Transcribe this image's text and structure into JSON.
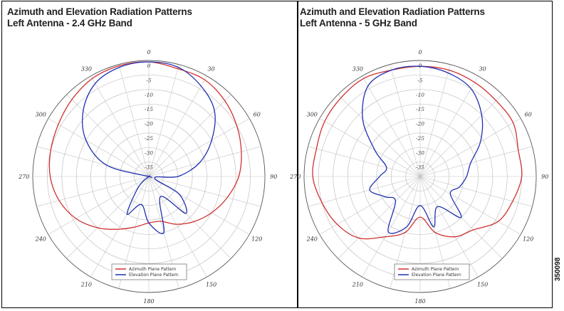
{
  "chart_data": [
    {
      "type": "polar",
      "title": "Azimuth and Elevation Radiation Patterns",
      "subtitle": "Left Antenna - 2.4 GHz Band",
      "angle_ticks": [
        "0",
        "30",
        "60",
        "90",
        "120",
        "150",
        "180",
        "210",
        "240",
        "270",
        "300",
        "330"
      ],
      "ring_ticks": [
        "0",
        "-5",
        "-10",
        "-15",
        "-20",
        "-25",
        "-30",
        "-35"
      ],
      "r_range_db": [
        -40,
        0
      ],
      "legend": [
        "Azimuth Plane Pattern",
        "Elevation Plane Pattern"
      ],
      "legend_position": "bottom-center",
      "series": [
        {
          "name": "Azimuth Plane Pattern",
          "color": "#d03030",
          "theta_deg": [
            0,
            15,
            30,
            45,
            60,
            75,
            90,
            105,
            120,
            135,
            150,
            165,
            180,
            195,
            210,
            225,
            240,
            255,
            270,
            285,
            300,
            315,
            330,
            345,
            360
          ],
          "r_db": [
            -0.5,
            -1.5,
            -1.5,
            -3,
            -5,
            -7,
            -9,
            -12,
            -15,
            -18,
            -21,
            -24,
            -24,
            -22,
            -19,
            -15,
            -11,
            -8,
            -6,
            -5,
            -4,
            -2.5,
            -1,
            -0.5,
            -0.5
          ]
        },
        {
          "name": "Elevation Plane Pattern",
          "color": "#2030b0",
          "theta_deg": [
            0,
            15,
            30,
            45,
            60,
            75,
            90,
            105,
            120,
            135,
            150,
            165,
            180,
            195,
            210,
            225,
            240,
            255,
            270,
            285,
            300,
            315,
            330,
            345,
            360
          ],
          "r_db": [
            -0.5,
            -1,
            -4,
            -8,
            -15,
            -22,
            -30,
            -38,
            -28,
            -22,
            -32,
            -20,
            -24,
            -30,
            -25,
            -35,
            -40,
            -40,
            -40,
            -25,
            -15,
            -8,
            -3,
            -1,
            -0.5
          ]
        }
      ]
    },
    {
      "type": "polar",
      "title": "Azimuth and Elevation Radiation Patterns",
      "subtitle": "Left Antenna - 5 GHz Band",
      "angle_ticks": [
        "0",
        "30",
        "60",
        "90",
        "120",
        "150",
        "180",
        "210",
        "240",
        "270",
        "300",
        "330"
      ],
      "ring_ticks": [
        "0",
        "-5",
        "-10",
        "-15",
        "-20",
        "-25",
        "-30",
        "-35"
      ],
      "r_range_db": [
        -40,
        0
      ],
      "legend": [
        "Azimuth Plane Pattern",
        "Elevation Plane Pattern"
      ],
      "legend_position": "bottom-center",
      "series": [
        {
          "name": "Azimuth Plane Pattern",
          "color": "#d03030",
          "theta_deg": [
            0,
            15,
            30,
            45,
            60,
            75,
            90,
            105,
            120,
            135,
            150,
            165,
            180,
            195,
            210,
            225,
            240,
            255,
            270,
            285,
            300,
            315,
            330,
            345,
            360
          ],
          "r_db": [
            -2,
            -2,
            -2.5,
            -3,
            -3,
            -5,
            -5,
            -7,
            -9,
            -14,
            -16,
            -20,
            -26,
            -20,
            -16,
            -10,
            -7,
            -5,
            -3,
            -3,
            -2,
            -1.5,
            -1,
            -2,
            -2
          ]
        },
        {
          "name": "Elevation Plane Pattern",
          "color": "#2030b0",
          "theta_deg": [
            0,
            15,
            30,
            45,
            60,
            75,
            90,
            105,
            120,
            135,
            150,
            165,
            180,
            195,
            210,
            225,
            240,
            255,
            270,
            285,
            300,
            315,
            330,
            345,
            360
          ],
          "r_db": [
            -2,
            -3,
            -5,
            -10,
            -16,
            -22,
            -24,
            -26,
            -28,
            -20,
            -28,
            -22,
            -30,
            -22,
            -18,
            -28,
            -26,
            -22,
            -26,
            -28,
            -22,
            -12,
            -4,
            -2,
            -2
          ]
        }
      ]
    }
  ],
  "figure_id": "350098"
}
